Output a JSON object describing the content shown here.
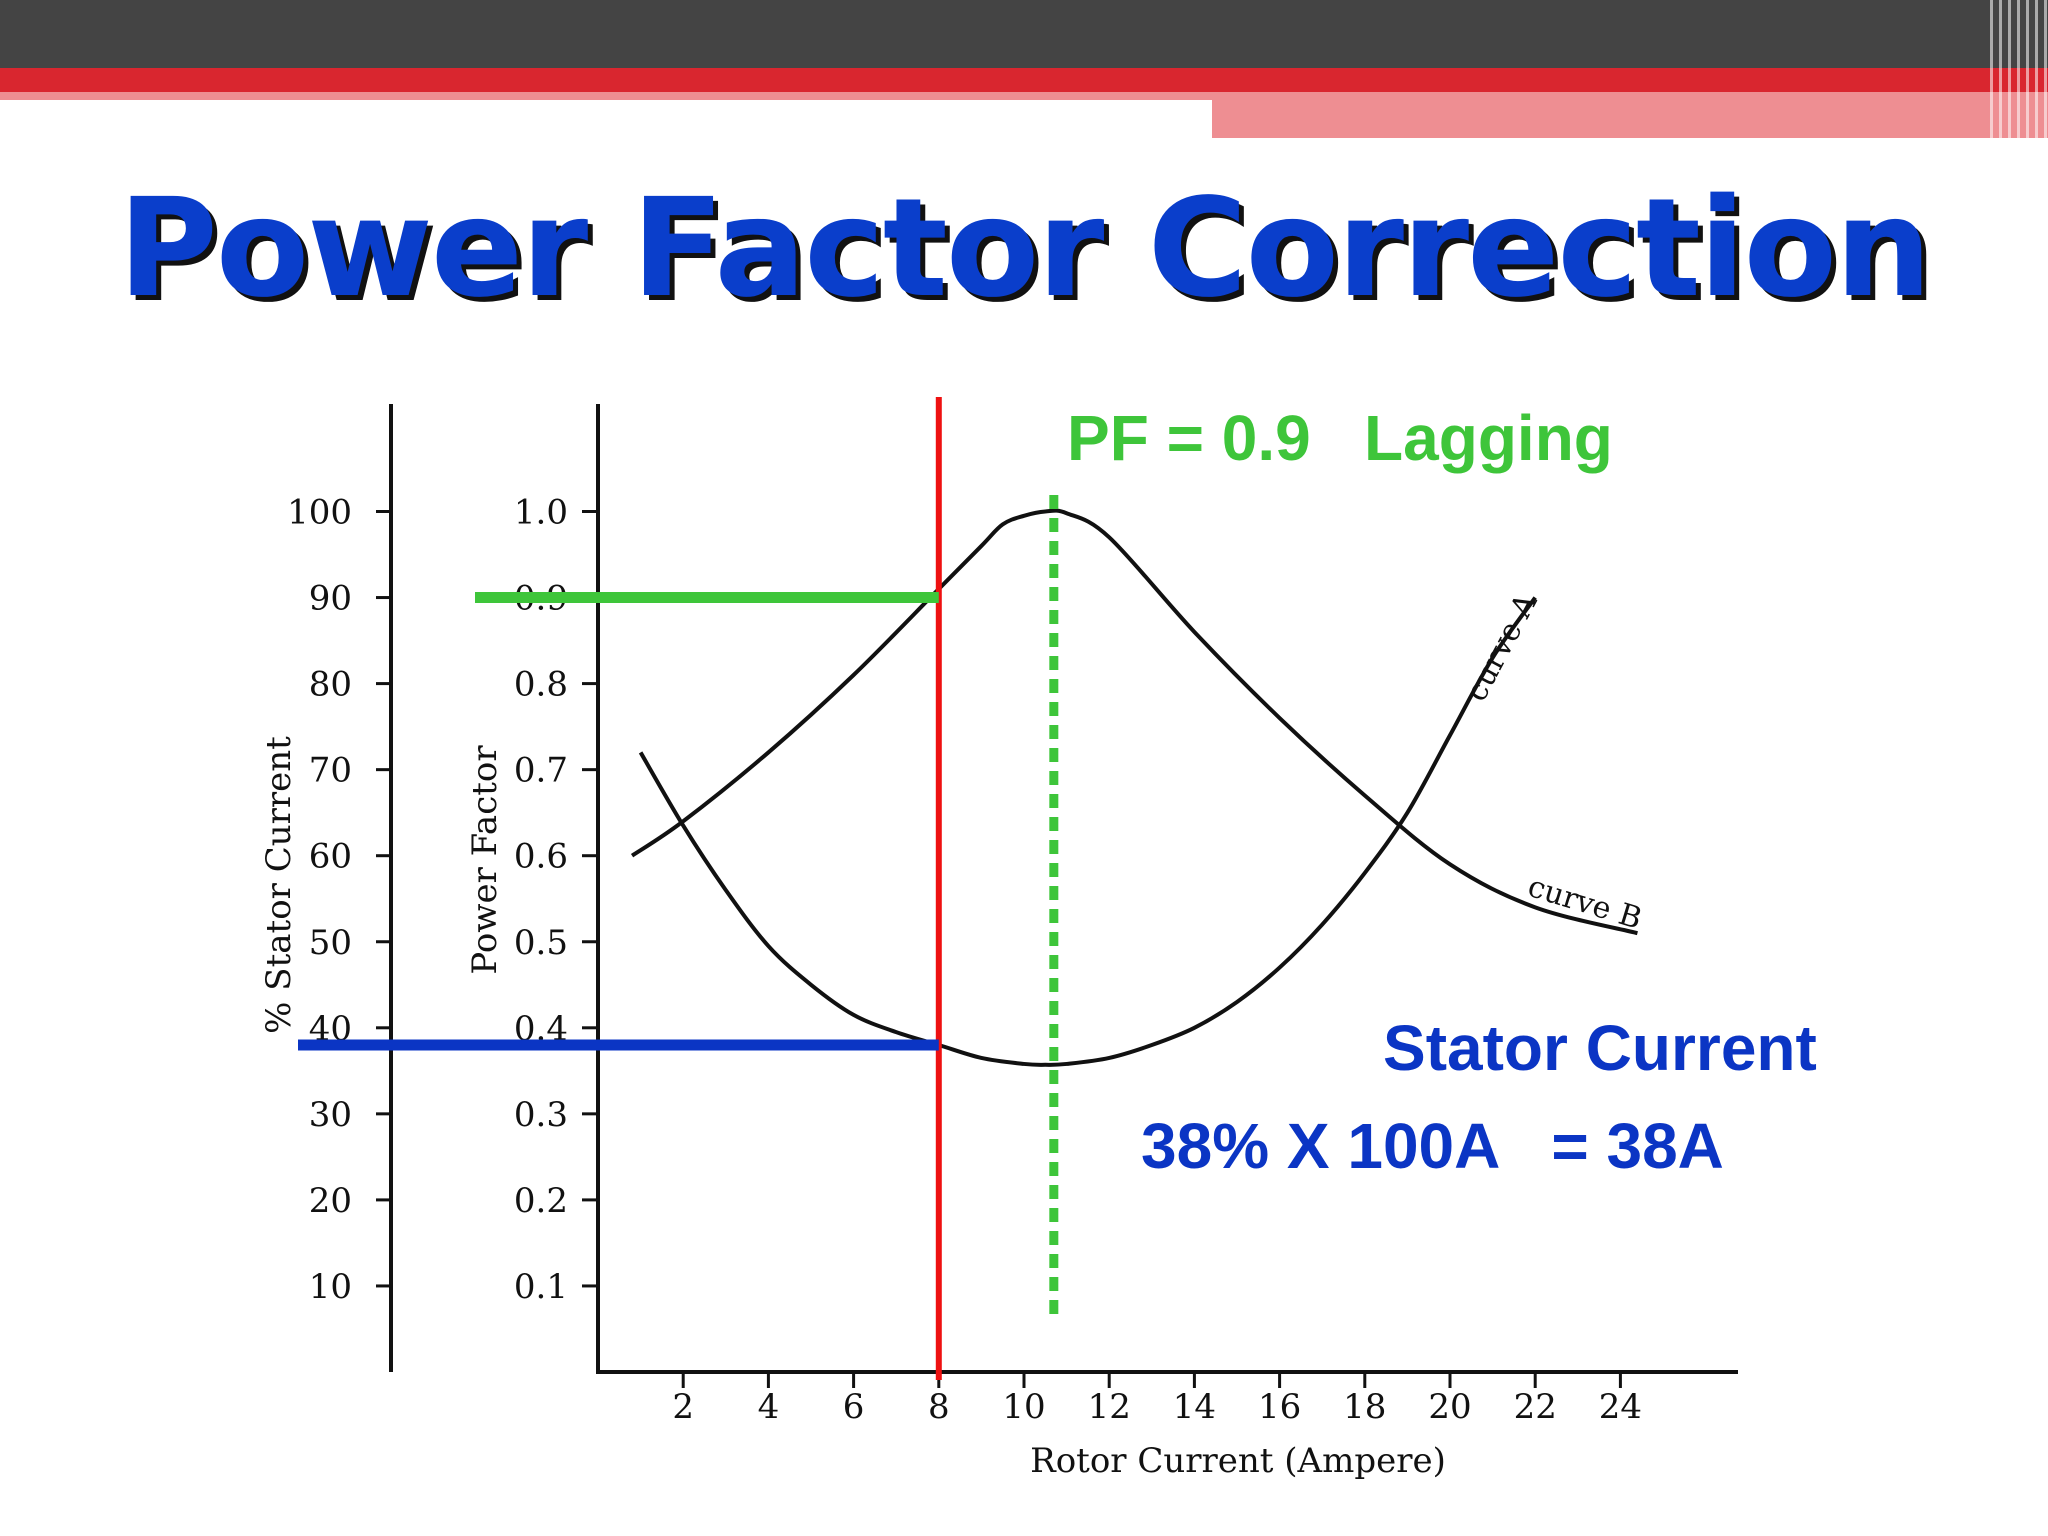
{
  "slide": {
    "title": "Power Factor Correction"
  },
  "colors": {
    "title": "#0a3ecb",
    "bar_dark": "#444444",
    "bar_red": "#d9262f",
    "bar_pink": "#ee8e92",
    "marker_red": "#ee1111",
    "marker_green": "#3ec53a",
    "marker_blue": "#0b35c4"
  },
  "chart_data": {
    "type": "line",
    "xlabel": "Rotor Current (Ampere)",
    "ylabel_left": "% Stator Current",
    "ylabel_right": "Power Factor",
    "x_ticks": [
      2,
      4,
      6,
      8,
      10,
      12,
      14,
      16,
      18,
      20,
      22,
      24
    ],
    "y_left_ticks": [
      10,
      20,
      30,
      40,
      50,
      60,
      70,
      80,
      90,
      100
    ],
    "y_pf_ticks": [
      "0.1",
      "0.2",
      "0.3",
      "0.4",
      "0.5",
      "0.6",
      "0.7",
      "0.8",
      "0.9",
      "1.0"
    ],
    "xlim": [
      0,
      26
    ],
    "ylim_pf": [
      0,
      1.1
    ],
    "ylim_stator": [
      0,
      110
    ],
    "series": [
      {
        "name": "curve A",
        "axis": "stator_current",
        "x": [
          1,
          2,
          3,
          4,
          5,
          6,
          7,
          8,
          9,
          10,
          10.5,
          11,
          12,
          13,
          14,
          15,
          16,
          17,
          18,
          19,
          20,
          21,
          22
        ],
        "y": [
          72,
          63.5,
          56,
          49.5,
          45,
          41.5,
          39.5,
          38,
          36.5,
          35.8,
          35.7,
          35.8,
          36.5,
          38,
          40,
          43,
          47,
          52,
          58,
          65,
          74,
          83,
          90
        ]
      },
      {
        "name": "curve B",
        "axis": "power_factor",
        "x": [
          0.8,
          2,
          4,
          6,
          8,
          9,
          9.5,
          10,
          10.5,
          11,
          12,
          14,
          16,
          18,
          20,
          22,
          24.4
        ],
        "y": [
          0.6,
          0.64,
          0.72,
          0.81,
          0.91,
          0.96,
          0.985,
          0.995,
          1.0,
          0.998,
          0.97,
          0.86,
          0.76,
          0.67,
          0.59,
          0.54,
          0.51
        ]
      }
    ],
    "series_labels": [
      "curve A",
      "curve B"
    ],
    "markers": {
      "operating_x": 8,
      "pf_value": 0.9,
      "stator_value": 38,
      "unity_pf_x": 10.7
    },
    "annotations": {
      "pf_text": "PF = 0.9   Lagging",
      "stator_heading": "Stator Current",
      "stator_calc": "38% X 100A   = 38A"
    }
  }
}
